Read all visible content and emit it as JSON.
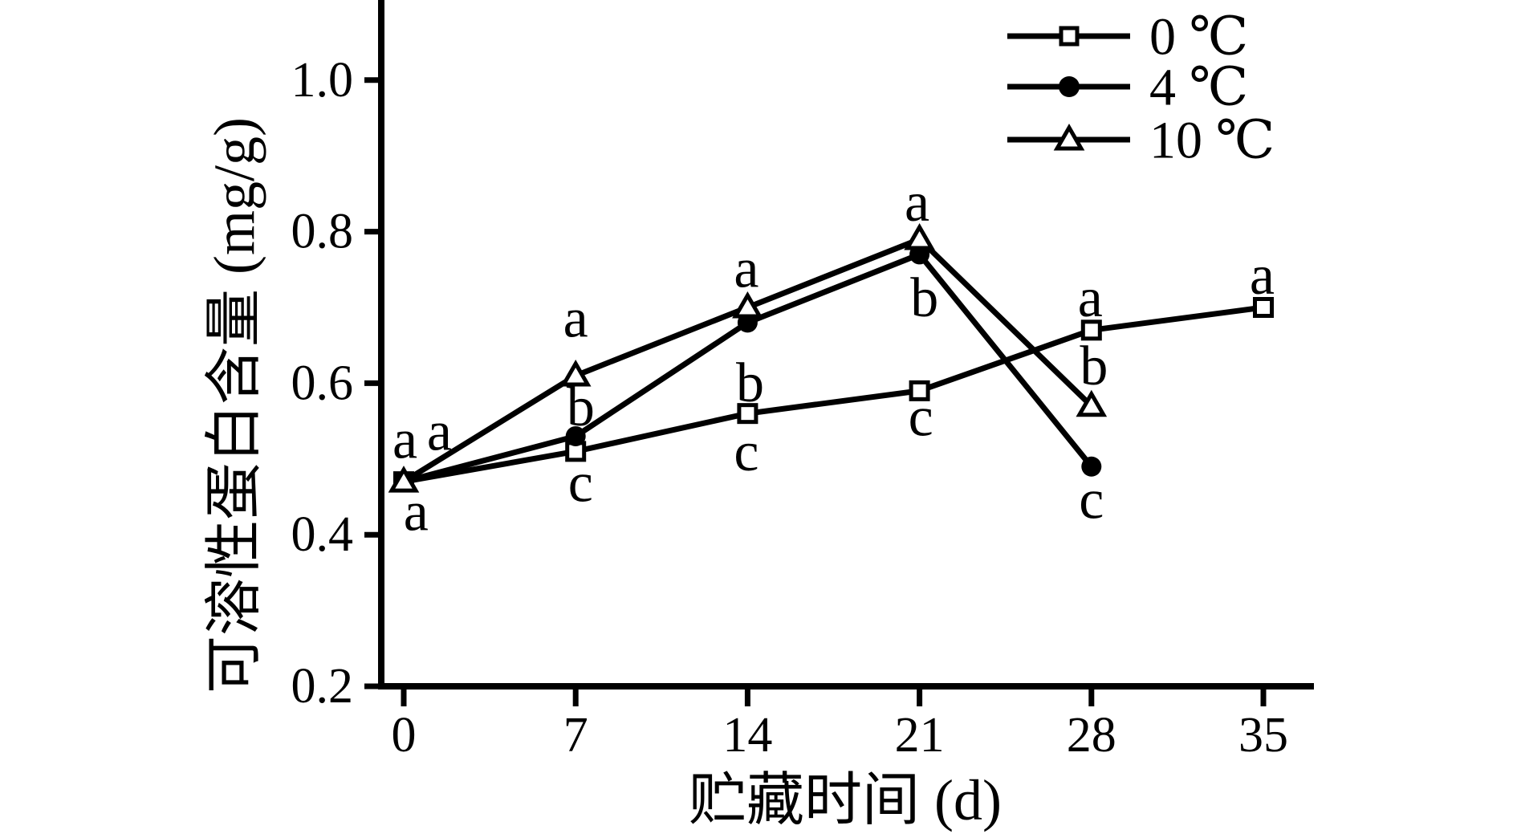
{
  "chart_data": {
    "type": "line",
    "title": "",
    "xlabel": "贮藏时间 (d)",
    "ylabel": "可溶性蛋白含量 (mg/g)",
    "xlim": [
      -1,
      37
    ],
    "ylim": [
      0.2,
      1.12
    ],
    "xticks": [
      0,
      7,
      14,
      21,
      28,
      35
    ],
    "xtick_labels": [
      "0",
      "7",
      "14",
      "21",
      "28",
      "35"
    ],
    "yticks": [
      0.2,
      0.4,
      0.6,
      0.8,
      1.0
    ],
    "ytick_labels": [
      "0.2",
      "0.4",
      "0.6",
      "0.8",
      "1.0"
    ],
    "grid": false,
    "legend_position": "top-right",
    "line_color": "#000000",
    "background_color": "#ffffff",
    "series": [
      {
        "name": "0 ℃",
        "marker": "open-square",
        "x": [
          0,
          7,
          14,
          21,
          28,
          35
        ],
        "values": [
          0.47,
          0.51,
          0.56,
          0.59,
          0.67,
          0.7
        ]
      },
      {
        "name": "4 ℃",
        "marker": "filled-circle",
        "x": [
          0,
          7,
          14,
          21,
          28
        ],
        "values": [
          0.47,
          0.53,
          0.68,
          0.77,
          0.49
        ]
      },
      {
        "name": "10 ℃",
        "marker": "open-triangle",
        "x": [
          0,
          7,
          14,
          21,
          28
        ],
        "values": [
          0.47,
          0.61,
          0.7,
          0.79,
          0.57
        ]
      }
    ],
    "point_labels": [
      {
        "x": 0.05,
        "y": 0.525,
        "text": "a"
      },
      {
        "x": 1.45,
        "y": 0.536,
        "text": "a"
      },
      {
        "x": 0.5,
        "y": 0.43,
        "text": "a"
      },
      {
        "x": 7.0,
        "y": 0.685,
        "text": "a"
      },
      {
        "x": 7.2,
        "y": 0.568,
        "text": "b"
      },
      {
        "x": 7.2,
        "y": 0.468,
        "text": "c"
      },
      {
        "x": 13.95,
        "y": 0.751,
        "text": "a"
      },
      {
        "x": 14.1,
        "y": 0.6,
        "text": "b"
      },
      {
        "x": 13.95,
        "y": 0.509,
        "text": "c"
      },
      {
        "x": 20.9,
        "y": 0.838,
        "text": "a"
      },
      {
        "x": 21.2,
        "y": 0.712,
        "text": "b"
      },
      {
        "x": 21.05,
        "y": 0.555,
        "text": "c"
      },
      {
        "x": 27.95,
        "y": 0.712,
        "text": "a"
      },
      {
        "x": 28.1,
        "y": 0.622,
        "text": "b"
      },
      {
        "x": 28.0,
        "y": 0.446,
        "text": "c"
      },
      {
        "x": 34.95,
        "y": 0.742,
        "text": "a"
      }
    ]
  }
}
